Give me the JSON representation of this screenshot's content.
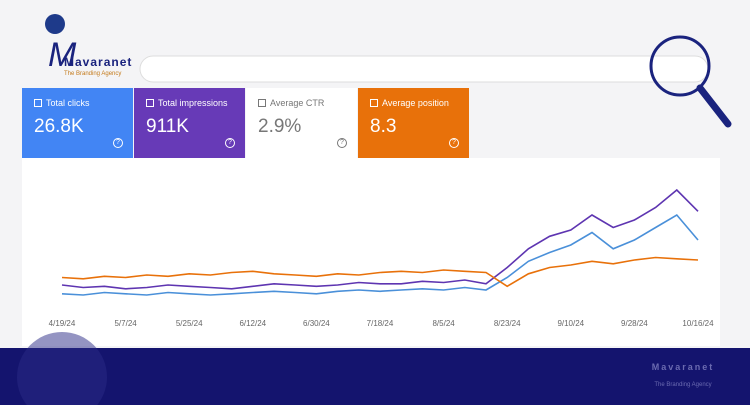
{
  "logo": {
    "name": "Mavaranet",
    "tagline": "The Branding Agency"
  },
  "metrics": [
    {
      "label": "Total clicks",
      "value": "26.8K"
    },
    {
      "label": "Total impressions",
      "value": "911K"
    },
    {
      "label": "Average CTR",
      "value": "2.9%"
    },
    {
      "label": "Average position",
      "value": "8.3"
    }
  ],
  "chart_data": {
    "type": "line",
    "categories": [
      "4/19/24",
      null,
      null,
      "5/7/24",
      null,
      null,
      "5/25/24",
      null,
      null,
      "6/12/24",
      null,
      null,
      "6/30/24",
      null,
      null,
      "7/18/24",
      null,
      null,
      "8/5/24",
      null,
      null,
      "8/23/24",
      null,
      null,
      "9/10/24",
      null,
      null,
      "9/28/24",
      null,
      null,
      "10/16/24"
    ],
    "ylim": [
      0,
      100
    ],
    "series": [
      {
        "name": "Total impressions",
        "color": "#5e35b1",
        "values": [
          16,
          14,
          15,
          13,
          14,
          16,
          15,
          14,
          13,
          15,
          17,
          16,
          15,
          16,
          18,
          17,
          17,
          19,
          18,
          20,
          17,
          30,
          45,
          55,
          60,
          72,
          62,
          68,
          78,
          92,
          75
        ]
      },
      {
        "name": "Total clicks",
        "color": "#4a90d9",
        "values": [
          9,
          8,
          10,
          9,
          8,
          10,
          9,
          8,
          9,
          10,
          11,
          10,
          9,
          11,
          12,
          11,
          12,
          13,
          12,
          14,
          12,
          22,
          35,
          42,
          48,
          58,
          45,
          52,
          62,
          72,
          52
        ]
      },
      {
        "name": "Average position",
        "color": "#e8710a",
        "values": [
          22,
          21,
          23,
          22,
          24,
          23,
          25,
          24,
          26,
          27,
          25,
          24,
          23,
          25,
          24,
          26,
          27,
          26,
          28,
          27,
          26,
          15,
          25,
          30,
          32,
          35,
          33,
          36,
          38,
          37,
          36
        ]
      }
    ]
  },
  "footer": {
    "name": "Mavaranet",
    "tagline": "The Branding Agency"
  }
}
